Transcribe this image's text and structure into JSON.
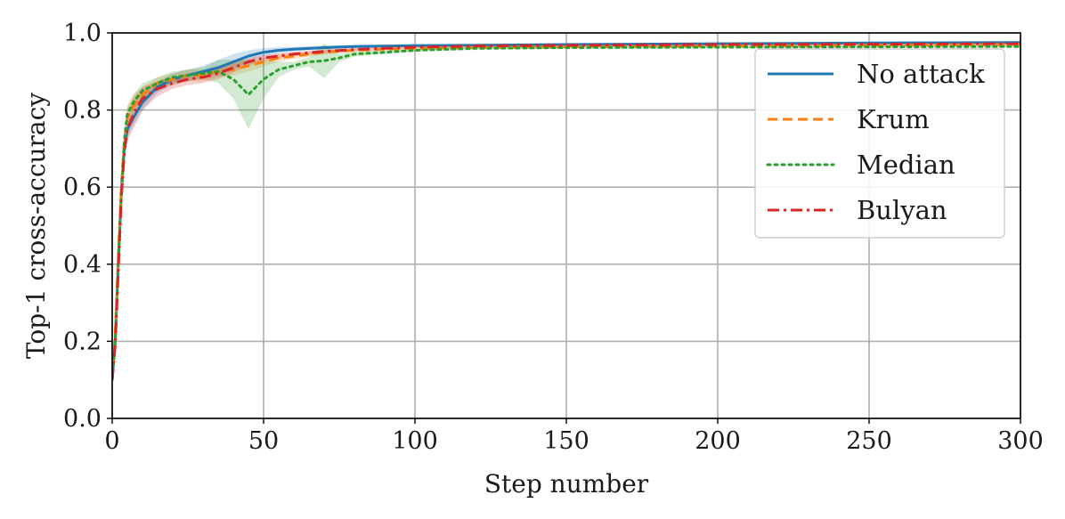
{
  "chart_data": {
    "type": "line",
    "xlabel": "Step number",
    "ylabel": "Top-1 cross-accuracy",
    "xlim": [
      0,
      300
    ],
    "ylim": [
      0.0,
      1.0
    ],
    "xticks": [
      0,
      50,
      100,
      150,
      200,
      250,
      300
    ],
    "yticks": [
      0.0,
      0.2,
      0.4,
      0.6,
      0.8,
      1.0
    ],
    "ytick_labels": [
      "0.0",
      "0.2",
      "0.4",
      "0.6",
      "0.8",
      "1.0"
    ],
    "grid": true,
    "legend_position": "top-right",
    "series": [
      {
        "name": "No attack",
        "color": "#1f77b4",
        "style": "solid",
        "x": [
          0,
          1,
          2,
          3,
          4,
          5,
          7,
          10,
          15,
          20,
          25,
          30,
          35,
          40,
          45,
          50,
          55,
          60,
          70,
          80,
          90,
          100,
          120,
          150,
          200,
          250,
          300
        ],
        "y": [
          0.1,
          0.2,
          0.4,
          0.58,
          0.7,
          0.75,
          0.78,
          0.82,
          0.86,
          0.88,
          0.89,
          0.9,
          0.91,
          0.925,
          0.94,
          0.95,
          0.955,
          0.958,
          0.962,
          0.965,
          0.966,
          0.967,
          0.968,
          0.97,
          0.972,
          0.974,
          0.975
        ],
        "band": [
          0.02,
          0.02,
          0.02,
          0.02,
          0.02,
          0.02,
          0.02,
          0.02,
          0.015,
          0.015,
          0.015,
          0.015,
          0.02,
          0.02,
          0.015,
          0.01,
          0.008,
          0.006,
          0.005,
          0.004,
          0.003,
          0.003,
          0.003,
          0.003,
          0.003,
          0.003,
          0.003
        ]
      },
      {
        "name": "Krum",
        "color": "#ff7f0e",
        "style": "dashed",
        "x": [
          0,
          1,
          2,
          3,
          4,
          5,
          7,
          10,
          15,
          20,
          25,
          30,
          35,
          40,
          45,
          50,
          55,
          60,
          70,
          80,
          90,
          100,
          120,
          150,
          200,
          250,
          300
        ],
        "y": [
          0.1,
          0.22,
          0.42,
          0.6,
          0.72,
          0.78,
          0.81,
          0.84,
          0.87,
          0.88,
          0.89,
          0.89,
          0.9,
          0.905,
          0.915,
          0.925,
          0.935,
          0.94,
          0.95,
          0.955,
          0.958,
          0.96,
          0.962,
          0.964,
          0.966,
          0.968,
          0.97
        ],
        "band": [
          0.02,
          0.02,
          0.02,
          0.02,
          0.03,
          0.03,
          0.03,
          0.02,
          0.015,
          0.015,
          0.015,
          0.015,
          0.015,
          0.015,
          0.015,
          0.012,
          0.01,
          0.008,
          0.006,
          0.005,
          0.004,
          0.004,
          0.003,
          0.003,
          0.003,
          0.003,
          0.003
        ]
      },
      {
        "name": "Median",
        "color": "#2ca02c",
        "style": "dotted",
        "x": [
          0,
          1,
          2,
          3,
          4,
          5,
          7,
          10,
          15,
          20,
          25,
          30,
          35,
          40,
          45,
          50,
          55,
          60,
          65,
          70,
          75,
          80,
          90,
          100,
          120,
          150,
          200,
          250,
          300
        ],
        "y": [
          0.1,
          0.2,
          0.4,
          0.58,
          0.72,
          0.79,
          0.82,
          0.85,
          0.87,
          0.885,
          0.89,
          0.895,
          0.9,
          0.88,
          0.84,
          0.88,
          0.905,
          0.915,
          0.925,
          0.928,
          0.935,
          0.945,
          0.95,
          0.955,
          0.96,
          0.962,
          0.963,
          0.964,
          0.965
        ],
        "band": [
          0.02,
          0.02,
          0.02,
          0.02,
          0.02,
          0.02,
          0.02,
          0.02,
          0.015,
          0.015,
          0.015,
          0.015,
          0.03,
          0.05,
          0.09,
          0.05,
          0.02,
          0.01,
          0.012,
          0.045,
          0.01,
          0.006,
          0.005,
          0.004,
          0.004,
          0.003,
          0.003,
          0.003,
          0.003
        ]
      },
      {
        "name": "Bulyan",
        "color": "#d62728",
        "style": "dashdot",
        "x": [
          0,
          1,
          2,
          3,
          4,
          5,
          7,
          10,
          15,
          20,
          25,
          30,
          35,
          40,
          45,
          50,
          55,
          60,
          70,
          80,
          90,
          100,
          120,
          150,
          200,
          250,
          300
        ],
        "y": [
          0.1,
          0.19,
          0.38,
          0.57,
          0.69,
          0.75,
          0.79,
          0.83,
          0.855,
          0.87,
          0.88,
          0.885,
          0.895,
          0.91,
          0.925,
          0.935,
          0.94,
          0.945,
          0.952,
          0.957,
          0.96,
          0.963,
          0.966,
          0.968,
          0.97,
          0.971,
          0.972
        ],
        "band": [
          0.02,
          0.02,
          0.02,
          0.02,
          0.03,
          0.03,
          0.04,
          0.03,
          0.02,
          0.015,
          0.015,
          0.015,
          0.015,
          0.012,
          0.01,
          0.008,
          0.007,
          0.006,
          0.005,
          0.004,
          0.004,
          0.003,
          0.003,
          0.003,
          0.003,
          0.003,
          0.003
        ]
      }
    ]
  }
}
